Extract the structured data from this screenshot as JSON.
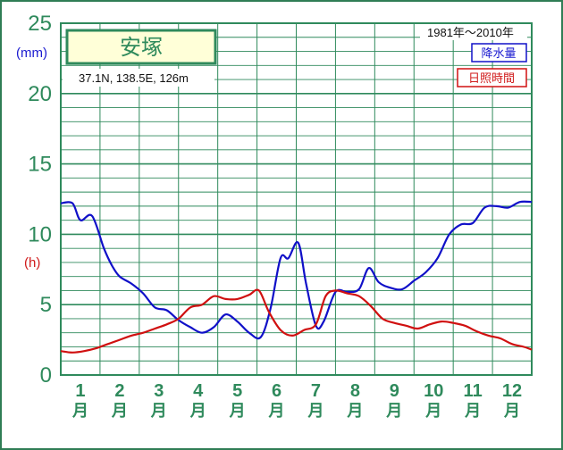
{
  "station": {
    "name": "安塚",
    "coords": "37.1N,  138.5E,  126m",
    "period": "1981年～2010年"
  },
  "units": {
    "precip": "(mm)",
    "sunshine": "(h)"
  },
  "legend": {
    "precip": "降水量",
    "sunshine": "日照時間"
  },
  "colors": {
    "grid": "#2f8a5c",
    "frame": "#2f7d55",
    "precip": "#1010c8",
    "sunshine": "#d01010",
    "titlebox_bg": "#ffffd8"
  },
  "chart_data": {
    "type": "line",
    "ylim": [
      0,
      25
    ],
    "yticks": [
      0,
      5,
      10,
      15,
      20,
      25
    ],
    "categories": [
      "1",
      "2",
      "3",
      "4",
      "5",
      "6",
      "7",
      "8",
      "9",
      "10",
      "11",
      "12"
    ],
    "category_unit": "月",
    "grid": true,
    "series": [
      {
        "name": "降水量",
        "x": [
          0.5,
          0.8,
          1.0,
          1.3,
          1.6,
          1.8,
          2.0,
          2.3,
          2.6,
          2.9,
          3.2,
          3.5,
          3.8,
          4.1,
          4.4,
          4.7,
          5.0,
          5.3,
          5.6,
          5.85,
          6.1,
          6.3,
          6.55,
          6.75,
          7.0,
          7.2,
          7.5,
          7.8,
          8.1,
          8.35,
          8.6,
          8.9,
          9.2,
          9.5,
          9.8,
          10.1,
          10.4,
          10.7,
          11.0,
          11.3,
          11.6,
          11.9,
          12.2,
          12.5
        ],
        "values": [
          12.2,
          12.2,
          11.0,
          11.3,
          9.0,
          7.8,
          7.0,
          6.5,
          5.8,
          4.8,
          4.6,
          3.9,
          3.4,
          3.0,
          3.4,
          4.3,
          3.8,
          3.0,
          2.7,
          4.8,
          8.3,
          8.3,
          9.4,
          6.5,
          3.5,
          3.8,
          5.9,
          5.9,
          6.1,
          7.6,
          6.6,
          6.2,
          6.1,
          6.7,
          7.3,
          8.3,
          10.0,
          10.7,
          10.8,
          11.9,
          12.0,
          11.9,
          12.3,
          12.3
        ],
        "color": "#1010c8"
      },
      {
        "name": "日照時間",
        "x": [
          0.5,
          0.8,
          1.1,
          1.4,
          1.7,
          2.0,
          2.3,
          2.6,
          2.9,
          3.2,
          3.5,
          3.8,
          4.1,
          4.4,
          4.7,
          5.0,
          5.3,
          5.55,
          5.8,
          6.1,
          6.4,
          6.7,
          7.0,
          7.25,
          7.5,
          7.8,
          8.1,
          8.4,
          8.7,
          9.0,
          9.3,
          9.6,
          9.9,
          10.2,
          10.5,
          10.8,
          11.1,
          11.4,
          11.7,
          12.0,
          12.3,
          12.5
        ],
        "values": [
          1.7,
          1.6,
          1.7,
          1.9,
          2.2,
          2.5,
          2.8,
          3.0,
          3.3,
          3.6,
          4.0,
          4.8,
          5.0,
          5.6,
          5.4,
          5.4,
          5.7,
          6.0,
          4.5,
          3.2,
          2.8,
          3.2,
          3.6,
          5.6,
          6.0,
          5.8,
          5.6,
          4.9,
          4.0,
          3.7,
          3.5,
          3.3,
          3.6,
          3.8,
          3.7,
          3.5,
          3.1,
          2.8,
          2.6,
          2.2,
          2.0,
          1.8
        ],
        "color": "#d01010"
      }
    ]
  }
}
